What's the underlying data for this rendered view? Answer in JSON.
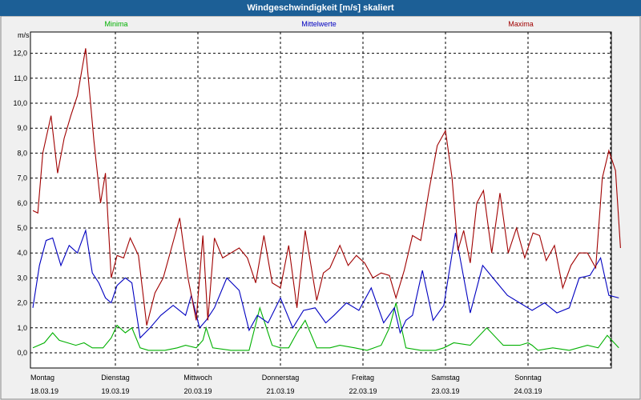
{
  "title": "Windgeschwindigkeit [m/s] skaliert",
  "colors": {
    "titlebar": "#1c5f96",
    "min": "#00b000",
    "avg": "#0000c0",
    "max": "#a00000",
    "grid": "#000000",
    "plot_bg": "#ffffff"
  },
  "chart_data": {
    "type": "line",
    "title": "Windgeschwindigkeit [m/s] skaliert",
    "ylabel": "m/s",
    "ylim": [
      0,
      12.5
    ],
    "yticks": [
      "0,0",
      "1,0",
      "2,0",
      "3,0",
      "4,0",
      "5,0",
      "6,0",
      "7,0",
      "8,0",
      "9,0",
      "10,0",
      "11,0",
      "12,0"
    ],
    "ytick_values": [
      0,
      1,
      2,
      3,
      4,
      5,
      6,
      7,
      8,
      9,
      10,
      11,
      12
    ],
    "xlim": [
      0,
      7.15
    ],
    "days": [
      {
        "day": "Montag",
        "date": "18.03.19"
      },
      {
        "day": "Dienstag",
        "date": "19.03.19"
      },
      {
        "day": "Mittwoch",
        "date": "20.03.19"
      },
      {
        "day": "Donnerstag",
        "date": "21.03.19"
      },
      {
        "day": "Freitag",
        "date": "22.03.19"
      },
      {
        "day": "Samstag",
        "date": "23.03.19"
      },
      {
        "day": "Sonntag",
        "date": "24.03.19"
      }
    ],
    "legend": [
      "Minima",
      "Mittelwerte",
      "Maxima"
    ],
    "series": [
      {
        "name": "Minima",
        "x": [
          0,
          0.14,
          0.24,
          0.32,
          0.42,
          0.52,
          0.62,
          0.72,
          0.85,
          0.95,
          1.02,
          1.12,
          1.2,
          1.3,
          1.4,
          1.6,
          1.75,
          1.85,
          1.98,
          2.06,
          2.1,
          2.18,
          2.4,
          2.62,
          2.75,
          2.9,
          3.0,
          3.1,
          3.2,
          3.3,
          3.44,
          3.52,
          3.6,
          3.72,
          3.9,
          4.05,
          4.22,
          4.32,
          4.4,
          4.52,
          4.7,
          4.88,
          4.98,
          5.1,
          5.3,
          5.5,
          5.7,
          5.9,
          6.0,
          6.05,
          6.12,
          6.3,
          6.5,
          6.72,
          6.85,
          6.96,
          7.1
        ],
        "values": [
          0.2,
          0.4,
          0.8,
          0.5,
          0.4,
          0.3,
          0.4,
          0.2,
          0.2,
          0.6,
          1.1,
          0.8,
          1.0,
          0.2,
          0.1,
          0.1,
          0.2,
          0.3,
          0.2,
          0.5,
          1.0,
          0.2,
          0.1,
          0.1,
          1.8,
          0.3,
          0.2,
          0.2,
          0.8,
          1.3,
          0.2,
          0.2,
          0.2,
          0.3,
          0.2,
          0.1,
          0.3,
          1.0,
          2.0,
          0.2,
          0.1,
          0.1,
          0.2,
          0.4,
          0.3,
          1.0,
          0.3,
          0.3,
          0.4,
          0.3,
          0.1,
          0.2,
          0.1,
          0.3,
          0.2,
          0.7,
          0.2
        ]
      },
      {
        "name": "Mittelwerte",
        "x": [
          0,
          0.08,
          0.16,
          0.24,
          0.34,
          0.44,
          0.54,
          0.64,
          0.72,
          0.8,
          0.88,
          0.95,
          1.02,
          1.12,
          1.2,
          1.3,
          1.42,
          1.55,
          1.7,
          1.85,
          1.92,
          2.02,
          2.1,
          2.2,
          2.35,
          2.5,
          2.62,
          2.72,
          2.85,
          3.0,
          3.15,
          3.28,
          3.42,
          3.55,
          3.65,
          3.8,
          3.95,
          4.1,
          4.25,
          4.38,
          4.45,
          4.52,
          4.6,
          4.72,
          4.85,
          4.98,
          5.12,
          5.3,
          5.45,
          5.6,
          5.75,
          5.9,
          6.05,
          6.2,
          6.35,
          6.5,
          6.62,
          6.75,
          6.88,
          6.98,
          7.1
        ],
        "values": [
          1.8,
          3.5,
          4.5,
          4.6,
          3.5,
          4.3,
          4.0,
          4.9,
          3.2,
          2.8,
          2.2,
          2.0,
          2.7,
          3.0,
          2.8,
          0.6,
          1.0,
          1.5,
          1.9,
          1.5,
          2.3,
          1.0,
          1.3,
          1.8,
          3.0,
          2.5,
          0.9,
          1.5,
          1.2,
          2.2,
          1.0,
          1.7,
          1.8,
          1.2,
          1.5,
          2.0,
          1.7,
          2.6,
          1.2,
          1.8,
          0.8,
          1.3,
          1.5,
          3.3,
          1.3,
          1.9,
          4.8,
          1.6,
          3.5,
          2.9,
          2.3,
          2.0,
          1.7,
          2.0,
          1.6,
          1.8,
          3.0,
          3.1,
          3.8,
          2.3,
          2.2
        ]
      },
      {
        "name": "Maxima",
        "x": [
          0,
          0.06,
          0.12,
          0.22,
          0.3,
          0.38,
          0.46,
          0.54,
          0.64,
          0.74,
          0.82,
          0.88,
          0.95,
          1.02,
          1.1,
          1.18,
          1.28,
          1.38,
          1.48,
          1.58,
          1.68,
          1.78,
          1.88,
          1.98,
          2.06,
          2.12,
          2.2,
          2.3,
          2.4,
          2.5,
          2.6,
          2.7,
          2.8,
          2.9,
          3.0,
          3.1,
          3.2,
          3.3,
          3.44,
          3.52,
          3.6,
          3.72,
          3.82,
          3.92,
          4.02,
          4.12,
          4.22,
          4.32,
          4.4,
          4.5,
          4.6,
          4.7,
          4.8,
          4.9,
          5.0,
          5.08,
          5.15,
          5.22,
          5.3,
          5.38,
          5.46,
          5.56,
          5.66,
          5.76,
          5.86,
          5.96,
          6.06,
          6.14,
          6.22,
          6.32,
          6.42,
          6.52,
          6.62,
          6.72,
          6.82,
          6.9,
          6.98,
          7.06,
          7.12
        ],
        "values": [
          5.7,
          5.6,
          8.0,
          9.5,
          7.2,
          8.6,
          9.5,
          10.3,
          12.2,
          8.5,
          6.0,
          7.2,
          3.0,
          3.9,
          3.8,
          4.6,
          3.9,
          1.1,
          2.4,
          3.0,
          4.2,
          5.4,
          3.0,
          1.3,
          4.7,
          1.3,
          4.6,
          3.8,
          4.0,
          4.2,
          3.8,
          2.8,
          4.7,
          2.8,
          2.6,
          4.3,
          1.8,
          4.9,
          2.1,
          3.2,
          3.4,
          4.3,
          3.5,
          3.9,
          3.6,
          3.0,
          3.2,
          3.1,
          2.2,
          3.3,
          4.7,
          4.5,
          6.5,
          8.3,
          8.9,
          7.0,
          4.1,
          4.9,
          3.6,
          6.0,
          6.5,
          4.0,
          6.4,
          4.0,
          5.0,
          3.8,
          4.8,
          4.7,
          3.7,
          4.3,
          2.6,
          3.5,
          4.0,
          4.0,
          3.4,
          7.0,
          8.1,
          7.3,
          4.2
        ]
      }
    ]
  }
}
